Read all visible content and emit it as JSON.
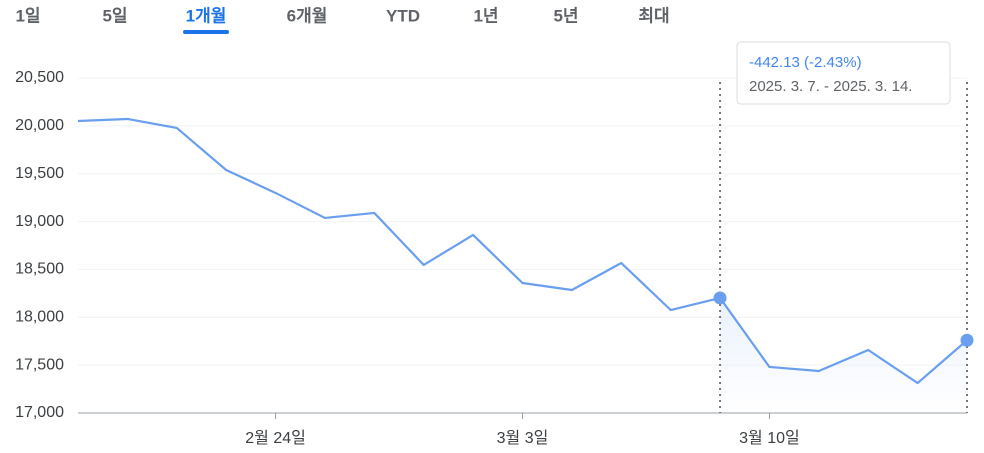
{
  "tabs": [
    "1일",
    "5일",
    "1개월",
    "6개월",
    "YTD",
    "1년",
    "5년",
    "최대"
  ],
  "selected_tab": 2,
  "chart_data": {
    "type": "line",
    "categories": [
      null,
      null,
      null,
      null,
      "2월 24일",
      null,
      null,
      null,
      null,
      "3월 3일",
      null,
      null,
      null,
      null,
      "3월 10일",
      null,
      null,
      null,
      null
    ],
    "values": [
      20051,
      20072,
      19978,
      19539,
      19299,
      19038,
      19090,
      18547,
      18860,
      18358,
      18285,
      18567,
      18076,
      18202,
      17481,
      17439,
      17658,
      17313,
      17760
    ],
    "color": "#6a9ff0",
    "ylim": [
      17000,
      20500
    ],
    "yticks": [
      {
        "value": 17000,
        "label": "17,000"
      },
      {
        "value": 17500,
        "label": "17,500"
      },
      {
        "value": 18000,
        "label": "18,000"
      },
      {
        "value": 18500,
        "label": "18,500"
      },
      {
        "value": 19000,
        "label": "19,000"
      },
      {
        "value": 19500,
        "label": "19,500"
      },
      {
        "value": 20000,
        "label": "20,000"
      },
      {
        "value": 20500,
        "label": "20,500"
      }
    ],
    "grid": true,
    "highlight_range": [
      13,
      18
    ],
    "tooltip": {
      "change": "-442.13 (-2.43%)",
      "range": "2025. 3. 7. - 2025. 3. 14."
    }
  }
}
